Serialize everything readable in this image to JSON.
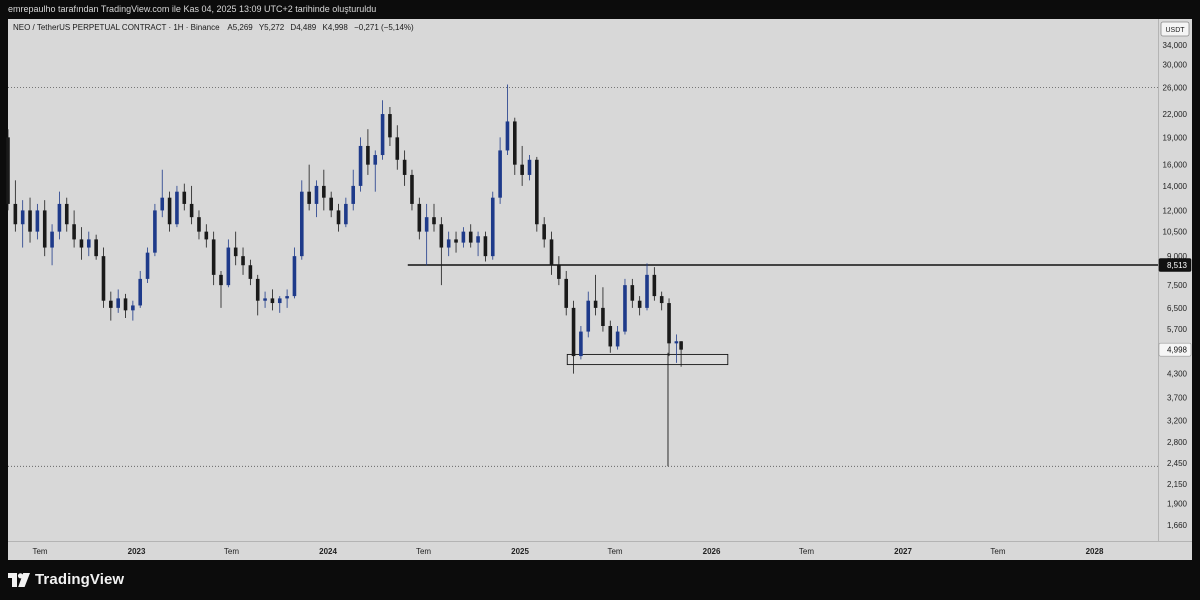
{
  "header": {
    "credit": "emrepaulho tarafından TradingView.com ile Kas 04, 2025 13:09 UTC+2 tarihinde oluşturuldu"
  },
  "footer": {
    "brand": "TradingView"
  },
  "colors": {
    "background": "#d8d8d8",
    "frame": "#0c0c0c",
    "candle_up": "#1e3a8a",
    "candle_down": "#1a1a1a",
    "level_line": "#111111"
  },
  "chart_data": {
    "type": "candlestick",
    "title": "NEO / TetherUS PERPETUAL CONTRACT · 1H · Binance",
    "ohlc": {
      "open_label": "A",
      "open": "5,269",
      "high_label": "Y",
      "high": "5,272",
      "low_label": "D",
      "low": "4,489",
      "close_label": "K",
      "close": "4,998",
      "change": "−0,271 (−5,14%)"
    },
    "currency": "USDT",
    "y_scale": "log",
    "ylim": [
      1500,
      40000
    ],
    "y_ticks": [
      {
        "value": 34000,
        "label": "34,000"
      },
      {
        "value": 30000,
        "label": "30,000"
      },
      {
        "value": 26000,
        "label": "26,000"
      },
      {
        "value": 22000,
        "label": "22,000"
      },
      {
        "value": 19000,
        "label": "19,000"
      },
      {
        "value": 16000,
        "label": "16,000"
      },
      {
        "value": 14000,
        "label": "14,000"
      },
      {
        "value": 12000,
        "label": "12,000"
      },
      {
        "value": 10500,
        "label": "10,500"
      },
      {
        "value": 9000,
        "label": "9,000"
      },
      {
        "value": 7500,
        "label": "7,500"
      },
      {
        "value": 6500,
        "label": "6,500"
      },
      {
        "value": 5700,
        "label": "5,700"
      },
      {
        "value": 4300,
        "label": "4,300"
      },
      {
        "value": 3700,
        "label": "3,700"
      },
      {
        "value": 3200,
        "label": "3,200"
      },
      {
        "value": 2800,
        "label": "2,800"
      },
      {
        "value": 2450,
        "label": "2,450"
      },
      {
        "value": 2150,
        "label": "2,150"
      },
      {
        "value": 1900,
        "label": "1,900"
      },
      {
        "value": 1660,
        "label": "1,660"
      }
    ],
    "x_range": [
      "2022-05-01",
      "2028-05-01"
    ],
    "x_ticks": [
      {
        "date": "2022-07-01",
        "label": "Tem"
      },
      {
        "date": "2023-01-01",
        "label": "2023"
      },
      {
        "date": "2023-07-01",
        "label": "Tem"
      },
      {
        "date": "2024-01-01",
        "label": "2024"
      },
      {
        "date": "2024-07-01",
        "label": "Tem"
      },
      {
        "date": "2025-01-01",
        "label": "2025"
      },
      {
        "date": "2025-07-01",
        "label": "Tem"
      },
      {
        "date": "2026-01-01",
        "label": "2026"
      },
      {
        "date": "2026-07-01",
        "label": "Tem"
      },
      {
        "date": "2027-01-01",
        "label": "2027"
      },
      {
        "date": "2027-07-01",
        "label": "Tem"
      },
      {
        "date": "2028-01-01",
        "label": "2028"
      }
    ],
    "price_labels": [
      {
        "value": 8513,
        "label": "8,513",
        "style": "dark"
      },
      {
        "value": 4998,
        "label": "4,998",
        "style": "light"
      }
    ],
    "horizontal_lines": [
      {
        "value": 26000,
        "style": "dotted"
      },
      {
        "value": 8513,
        "style": "solid",
        "from": "2024-06-01"
      },
      {
        "value": 2400,
        "style": "dotted"
      }
    ],
    "zone": {
      "from": "2025-04-01",
      "to": "2026-02-01",
      "low": 4550,
      "high": 4850
    },
    "wick_extreme": {
      "date": "2025-10-10",
      "high": 4900,
      "low": 2400
    },
    "series": [
      {
        "date": "2022-05-01",
        "open": 19000,
        "high": 20000,
        "low": 12000,
        "close": 12500
      },
      {
        "date": "2022-05-15",
        "open": 12500,
        "high": 14500,
        "low": 10500,
        "close": 11000
      },
      {
        "date": "2022-05-29",
        "open": 11000,
        "high": 12800,
        "low": 9500,
        "close": 12000
      },
      {
        "date": "2022-06-12",
        "open": 12000,
        "high": 13000,
        "low": 9800,
        "close": 10500
      },
      {
        "date": "2022-06-26",
        "open": 10500,
        "high": 12500,
        "low": 10000,
        "close": 12000
      },
      {
        "date": "2022-07-10",
        "open": 12000,
        "high": 12800,
        "low": 9000,
        "close": 9500
      },
      {
        "date": "2022-07-24",
        "open": 9500,
        "high": 11000,
        "low": 8500,
        "close": 10500
      },
      {
        "date": "2022-08-07",
        "open": 10500,
        "high": 13500,
        "low": 10000,
        "close": 12500
      },
      {
        "date": "2022-08-21",
        "open": 12500,
        "high": 13000,
        "low": 10500,
        "close": 11000
      },
      {
        "date": "2022-09-04",
        "open": 11000,
        "high": 12000,
        "low": 9500,
        "close": 10000
      },
      {
        "date": "2022-09-18",
        "open": 10000,
        "high": 10800,
        "low": 8800,
        "close": 9500
      },
      {
        "date": "2022-10-02",
        "open": 9500,
        "high": 10500,
        "low": 9000,
        "close": 10000
      },
      {
        "date": "2022-10-16",
        "open": 10000,
        "high": 10300,
        "low": 8800,
        "close": 9000
      },
      {
        "date": "2022-10-30",
        "open": 9000,
        "high": 9500,
        "low": 6500,
        "close": 6800
      },
      {
        "date": "2022-11-13",
        "open": 6800,
        "high": 7200,
        "low": 6000,
        "close": 6500
      },
      {
        "date": "2022-11-27",
        "open": 6500,
        "high": 7300,
        "low": 6300,
        "close": 6900
      },
      {
        "date": "2022-12-11",
        "open": 6900,
        "high": 7100,
        "low": 6100,
        "close": 6400
      },
      {
        "date": "2022-12-25",
        "open": 6400,
        "high": 6800,
        "low": 6000,
        "close": 6600
      },
      {
        "date": "2023-01-08",
        "open": 6600,
        "high": 8200,
        "low": 6500,
        "close": 7800
      },
      {
        "date": "2023-01-22",
        "open": 7800,
        "high": 9500,
        "low": 7600,
        "close": 9200
      },
      {
        "date": "2023-02-05",
        "open": 9200,
        "high": 12500,
        "low": 9000,
        "close": 12000
      },
      {
        "date": "2023-02-19",
        "open": 12000,
        "high": 15500,
        "low": 11500,
        "close": 13000
      },
      {
        "date": "2023-03-05",
        "open": 13000,
        "high": 13500,
        "low": 10500,
        "close": 11000
      },
      {
        "date": "2023-03-19",
        "open": 11000,
        "high": 14000,
        "low": 10800,
        "close": 13500
      },
      {
        "date": "2023-04-02",
        "open": 13500,
        "high": 14200,
        "low": 12000,
        "close": 12500
      },
      {
        "date": "2023-04-16",
        "open": 12500,
        "high": 14000,
        "low": 11000,
        "close": 11500
      },
      {
        "date": "2023-04-30",
        "open": 11500,
        "high": 12000,
        "low": 10000,
        "close": 10500
      },
      {
        "date": "2023-05-14",
        "open": 10500,
        "high": 11000,
        "low": 9500,
        "close": 10000
      },
      {
        "date": "2023-05-28",
        "open": 10000,
        "high": 10500,
        "low": 7500,
        "close": 8000
      },
      {
        "date": "2023-06-11",
        "open": 8000,
        "high": 8200,
        "low": 6500,
        "close": 7500
      },
      {
        "date": "2023-06-25",
        "open": 7500,
        "high": 10000,
        "low": 7400,
        "close": 9500
      },
      {
        "date": "2023-07-09",
        "open": 9500,
        "high": 10500,
        "low": 8500,
        "close": 9000
      },
      {
        "date": "2023-07-23",
        "open": 9000,
        "high": 9500,
        "low": 8000,
        "close": 8500
      },
      {
        "date": "2023-08-06",
        "open": 8500,
        "high": 8800,
        "low": 7500,
        "close": 7800
      },
      {
        "date": "2023-08-20",
        "open": 7800,
        "high": 8000,
        "low": 6200,
        "close": 6800
      },
      {
        "date": "2023-09-03",
        "open": 6800,
        "high": 7200,
        "low": 6500,
        "close": 6900
      },
      {
        "date": "2023-09-17",
        "open": 6900,
        "high": 7300,
        "low": 6400,
        "close": 6700
      },
      {
        "date": "2023-10-01",
        "open": 6700,
        "high": 7000,
        "low": 6300,
        "close": 6900
      },
      {
        "date": "2023-10-15",
        "open": 6900,
        "high": 7300,
        "low": 6500,
        "close": 7000
      },
      {
        "date": "2023-10-29",
        "open": 7000,
        "high": 9500,
        "low": 6900,
        "close": 9000
      },
      {
        "date": "2023-11-12",
        "open": 9000,
        "high": 14500,
        "low": 8800,
        "close": 13500
      },
      {
        "date": "2023-11-26",
        "open": 13500,
        "high": 16000,
        "low": 12000,
        "close": 12500
      },
      {
        "date": "2023-12-10",
        "open": 12500,
        "high": 14500,
        "low": 11500,
        "close": 14000
      },
      {
        "date": "2023-12-24",
        "open": 14000,
        "high": 15500,
        "low": 12000,
        "close": 13000
      },
      {
        "date": "2024-01-07",
        "open": 13000,
        "high": 13500,
        "low": 11500,
        "close": 12000
      },
      {
        "date": "2024-01-21",
        "open": 12000,
        "high": 12500,
        "low": 10500,
        "close": 11000
      },
      {
        "date": "2024-02-04",
        "open": 11000,
        "high": 13000,
        "low": 10800,
        "close": 12500
      },
      {
        "date": "2024-02-18",
        "open": 12500,
        "high": 15500,
        "low": 12000,
        "close": 14000
      },
      {
        "date": "2024-03-03",
        "open": 14000,
        "high": 19000,
        "low": 13500,
        "close": 18000
      },
      {
        "date": "2024-03-17",
        "open": 18000,
        "high": 20000,
        "low": 15000,
        "close": 16000
      },
      {
        "date": "2024-03-31",
        "open": 16000,
        "high": 17500,
        "low": 13500,
        "close": 17000
      },
      {
        "date": "2024-04-14",
        "open": 17000,
        "high": 24000,
        "low": 16500,
        "close": 22000
      },
      {
        "date": "2024-04-28",
        "open": 22000,
        "high": 23000,
        "low": 18000,
        "close": 19000
      },
      {
        "date": "2024-05-12",
        "open": 19000,
        "high": 20500,
        "low": 15500,
        "close": 16500
      },
      {
        "date": "2024-05-26",
        "open": 16500,
        "high": 17500,
        "low": 14000,
        "close": 15000
      },
      {
        "date": "2024-06-09",
        "open": 15000,
        "high": 15500,
        "low": 12000,
        "close": 12500
      },
      {
        "date": "2024-06-23",
        "open": 12500,
        "high": 13000,
        "low": 10000,
        "close": 10500
      },
      {
        "date": "2024-07-07",
        "open": 10500,
        "high": 12500,
        "low": 8500,
        "close": 11500
      },
      {
        "date": "2024-07-21",
        "open": 11500,
        "high": 12500,
        "low": 10500,
        "close": 11000
      },
      {
        "date": "2024-08-04",
        "open": 11000,
        "high": 11500,
        "low": 7500,
        "close": 9500
      },
      {
        "date": "2024-08-18",
        "open": 9500,
        "high": 10500,
        "low": 9000,
        "close": 10000
      },
      {
        "date": "2024-09-01",
        "open": 10000,
        "high": 10500,
        "low": 9200,
        "close": 9800
      },
      {
        "date": "2024-09-15",
        "open": 9800,
        "high": 10800,
        "low": 9500,
        "close": 10500
      },
      {
        "date": "2024-09-29",
        "open": 10500,
        "high": 11000,
        "low": 9500,
        "close": 9800
      },
      {
        "date": "2024-10-13",
        "open": 9800,
        "high": 10500,
        "low": 9000,
        "close": 10200
      },
      {
        "date": "2024-10-27",
        "open": 10200,
        "high": 10500,
        "low": 8700,
        "close": 9000
      },
      {
        "date": "2024-11-10",
        "open": 9000,
        "high": 13500,
        "low": 8800,
        "close": 13000
      },
      {
        "date": "2024-11-24",
        "open": 13000,
        "high": 19000,
        "low": 12500,
        "close": 17500
      },
      {
        "date": "2024-12-08",
        "open": 17500,
        "high": 26500,
        "low": 17000,
        "close": 21000
      },
      {
        "date": "2024-12-22",
        "open": 21000,
        "high": 21500,
        "low": 15000,
        "close": 16000
      },
      {
        "date": "2025-01-05",
        "open": 16000,
        "high": 18000,
        "low": 14000,
        "close": 15000
      },
      {
        "date": "2025-01-19",
        "open": 15000,
        "high": 17000,
        "low": 14500,
        "close": 16500
      },
      {
        "date": "2025-02-02",
        "open": 16500,
        "high": 16800,
        "low": 10500,
        "close": 11000
      },
      {
        "date": "2025-02-16",
        "open": 11000,
        "high": 11500,
        "low": 9500,
        "close": 10000
      },
      {
        "date": "2025-03-02",
        "open": 10000,
        "high": 10500,
        "low": 8000,
        "close": 8500
      },
      {
        "date": "2025-03-16",
        "open": 8500,
        "high": 9000,
        "low": 7500,
        "close": 7800
      },
      {
        "date": "2025-03-30",
        "open": 7800,
        "high": 8200,
        "low": 6200,
        "close": 6500
      },
      {
        "date": "2025-04-13",
        "open": 6500,
        "high": 6800,
        "low": 4300,
        "close": 4800
      },
      {
        "date": "2025-04-27",
        "open": 4800,
        "high": 5800,
        "low": 4700,
        "close": 5600
      },
      {
        "date": "2025-05-11",
        "open": 5600,
        "high": 7200,
        "low": 5400,
        "close": 6800
      },
      {
        "date": "2025-05-25",
        "open": 6800,
        "high": 8000,
        "low": 6200,
        "close": 6500
      },
      {
        "date": "2025-06-08",
        "open": 6500,
        "high": 7400,
        "low": 5600,
        "close": 5800
      },
      {
        "date": "2025-06-22",
        "open": 5800,
        "high": 6000,
        "low": 4900,
        "close": 5100
      },
      {
        "date": "2025-07-06",
        "open": 5100,
        "high": 5800,
        "low": 5000,
        "close": 5600
      },
      {
        "date": "2025-07-20",
        "open": 5600,
        "high": 7800,
        "low": 5500,
        "close": 7500
      },
      {
        "date": "2025-08-03",
        "open": 7500,
        "high": 7800,
        "low": 6500,
        "close": 6800
      },
      {
        "date": "2025-08-17",
        "open": 6800,
        "high": 7000,
        "low": 6200,
        "close": 6500
      },
      {
        "date": "2025-08-31",
        "open": 6500,
        "high": 8600,
        "low": 6400,
        "close": 8000
      },
      {
        "date": "2025-09-14",
        "open": 8000,
        "high": 8400,
        "low": 6800,
        "close": 7000
      },
      {
        "date": "2025-09-28",
        "open": 7000,
        "high": 7200,
        "low": 6400,
        "close": 6700
      },
      {
        "date": "2025-10-12",
        "open": 6700,
        "high": 6900,
        "low": 4800,
        "close": 5200
      },
      {
        "date": "2025-10-26",
        "open": 5200,
        "high": 5500,
        "low": 4600,
        "close": 5269
      },
      {
        "date": "2025-11-04",
        "open": 5269,
        "high": 5272,
        "low": 4489,
        "close": 4998
      }
    ]
  }
}
